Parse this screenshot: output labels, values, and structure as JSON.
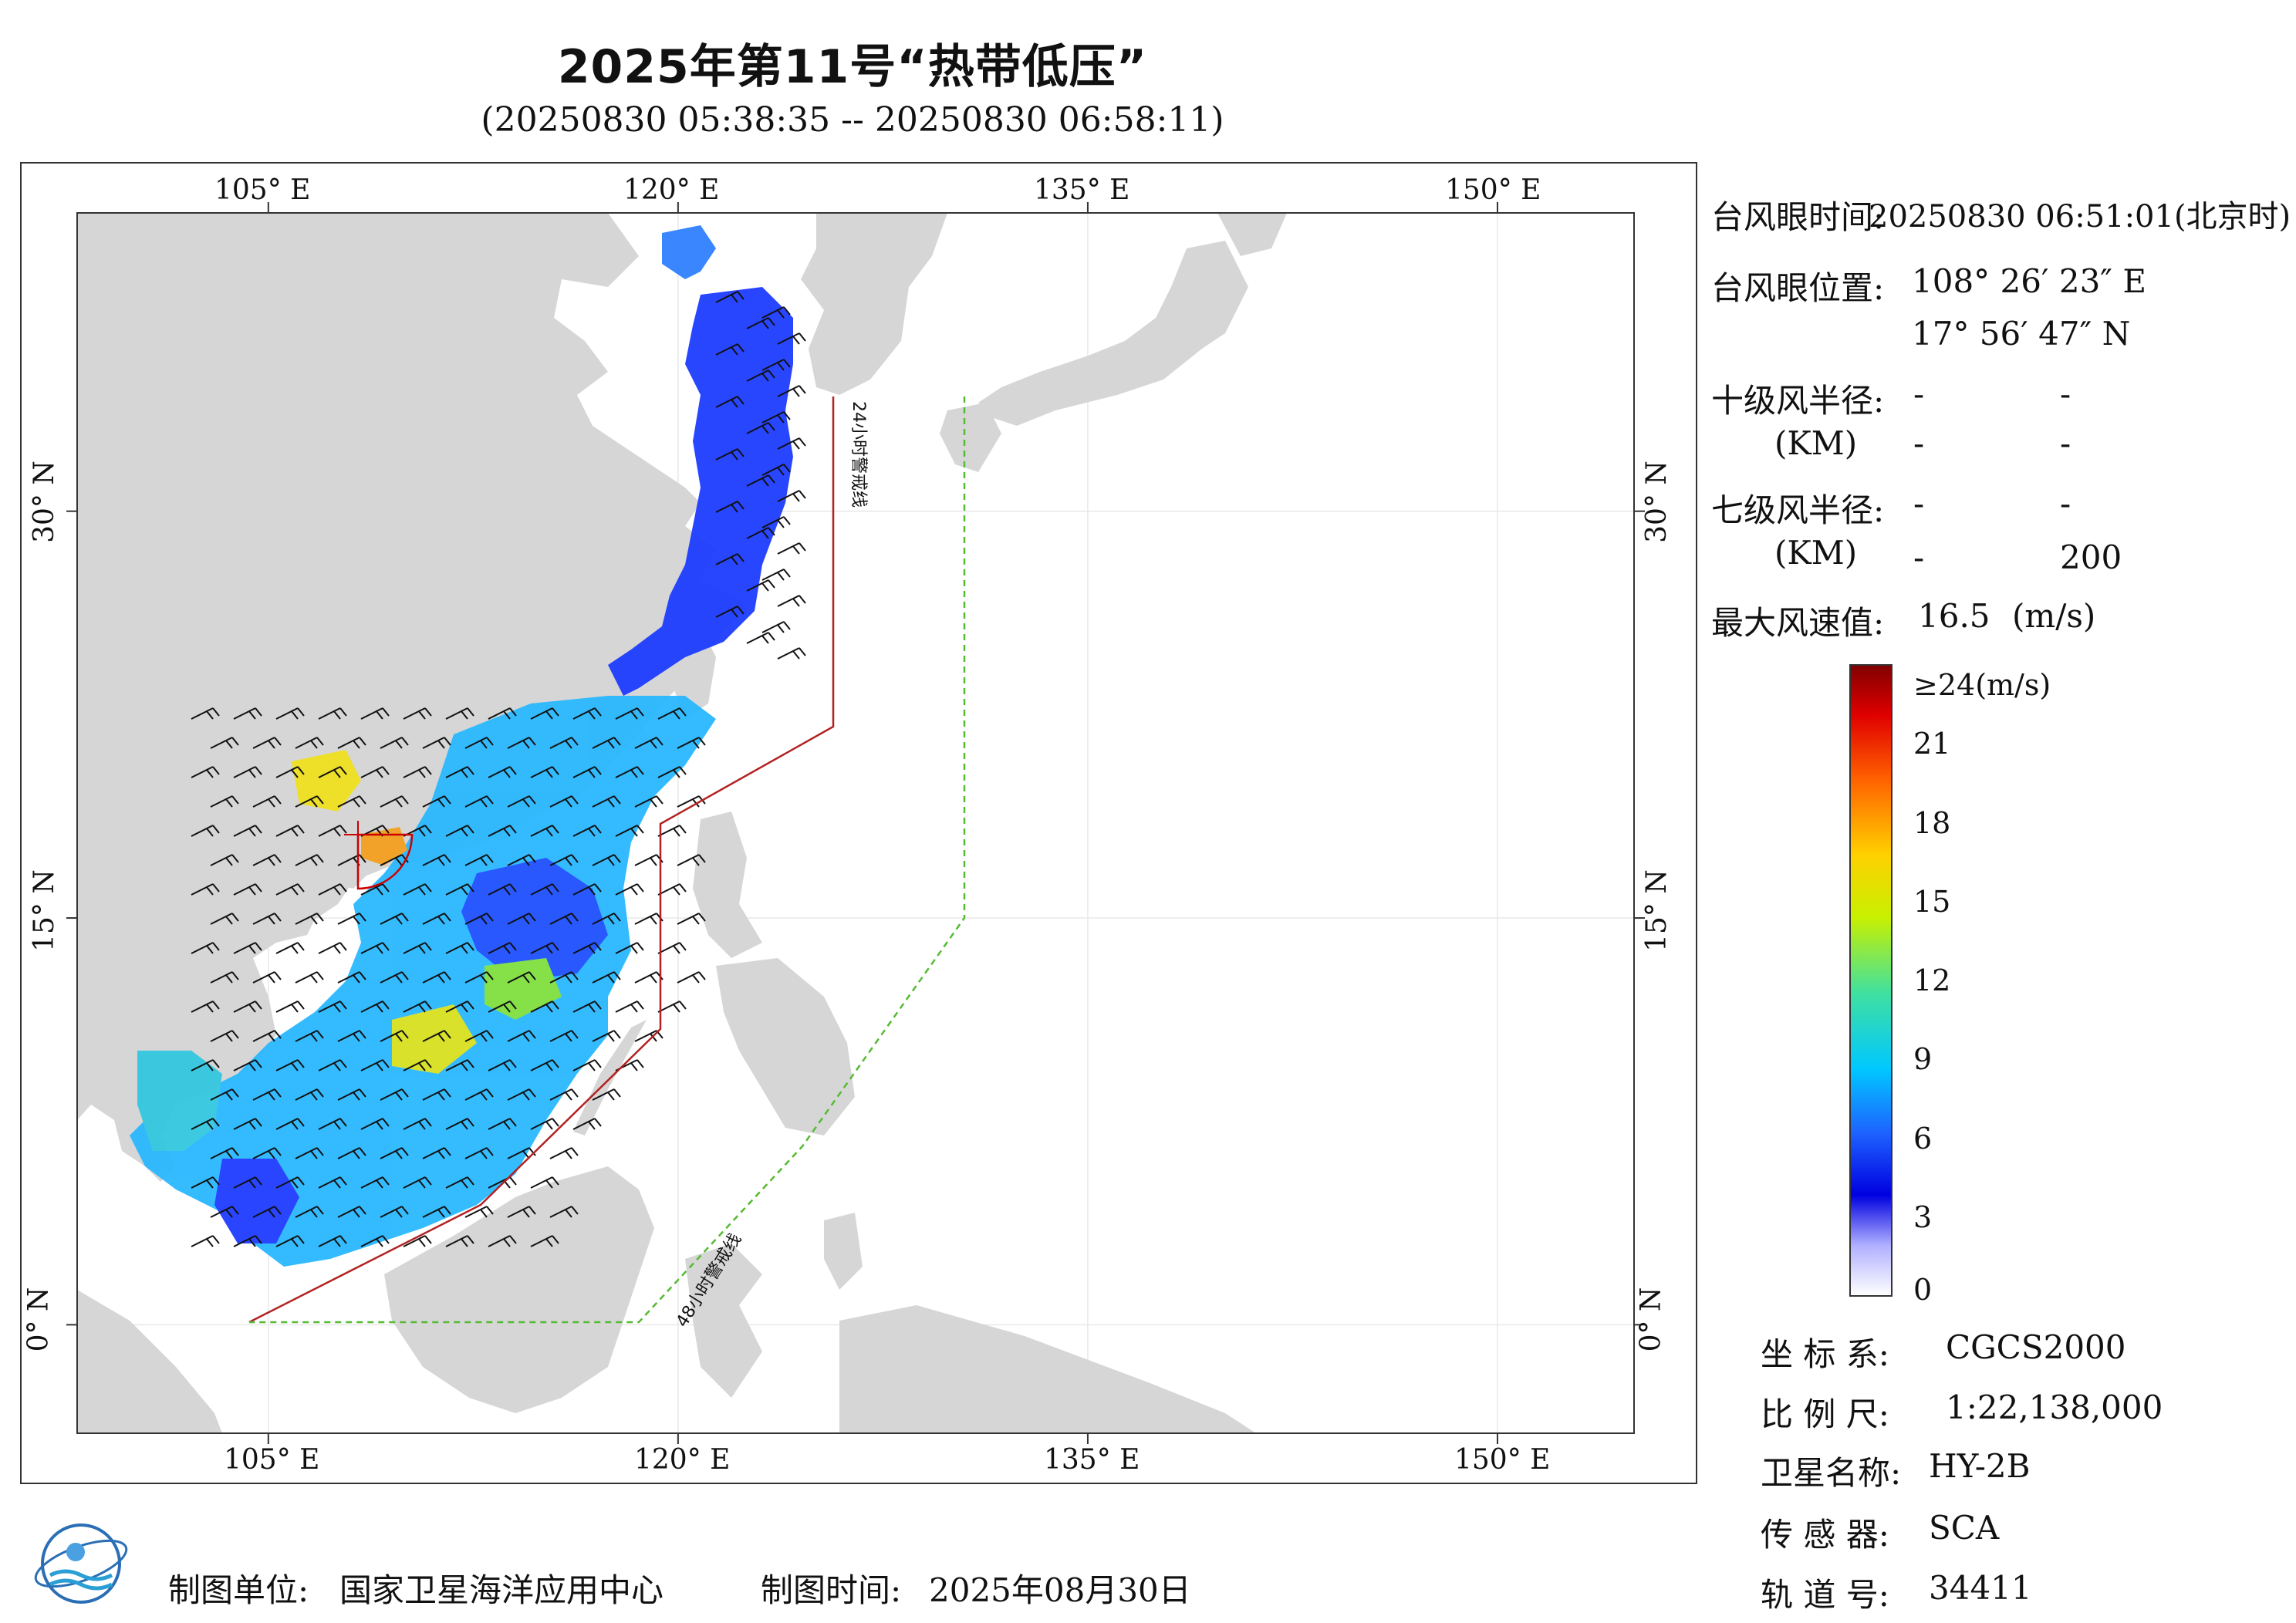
{
  "title": "2025年第11号“热带低压”",
  "subtitle": "(20250830 05:38:35 -- 20250830 06:58:11)",
  "map": {
    "lon_ticks": [
      "105° E",
      "120° E",
      "135° E",
      "150° E"
    ],
    "lat_ticks": [
      "30° N",
      "15° N",
      "0° N"
    ],
    "lon_range": [
      98,
      155
    ],
    "lat_range": [
      -4,
      41
    ],
    "warning_24h_label": "24小时警戒线",
    "warning_48h_label": "48小时警戒线",
    "colors": {
      "land": "#d6d6d6",
      "sea": "#ffffff",
      "warning_24h": "#b22222",
      "warning_48h": "#55bb33"
    }
  },
  "info": {
    "eye_time_label": "台风眼时间:",
    "eye_time_value": "20250830 06:51:01(北京时)",
    "eye_pos_label": "台风眼位置:",
    "eye_lon": "108° 26′ 23″ E",
    "eye_lat": "17° 56′ 47″ N",
    "r10_label": "十级风半径:",
    "r10_unit": "(KM)",
    "r10_values": [
      "-",
      "-",
      "-",
      "-"
    ],
    "r7_label": "七级风半径:",
    "r7_unit": "(KM)",
    "r7_values": [
      "-",
      "-",
      "-",
      "200"
    ],
    "max_wind_label": "最大风速值:",
    "max_wind_value": "16.5",
    "max_wind_unit": "(m/s)"
  },
  "legend": {
    "ticks": [
      "≥24(m/s)",
      "21",
      "18",
      "15",
      "12",
      "9",
      "6",
      "3",
      "0"
    ],
    "values": [
      24,
      21,
      18,
      15,
      12,
      9,
      6,
      3,
      0
    ],
    "max": 24
  },
  "meta": {
    "crs_label": "坐 标 系:",
    "crs_value": "CGCS2000",
    "scale_label": "比 例 尺:",
    "scale_value": "1:22,138,000",
    "sat_label": "卫星名称:",
    "sat_value": "HY-2B",
    "sensor_label": "传 感 器:",
    "sensor_value": "SCA",
    "orbit_label": "轨 道 号:",
    "orbit_value": "34411"
  },
  "footer": {
    "producer_label": "制图单位:",
    "producer_value": "国家卫星海洋应用中心",
    "date_label": "制图时间:",
    "date_value": "2025年08月30日"
  }
}
